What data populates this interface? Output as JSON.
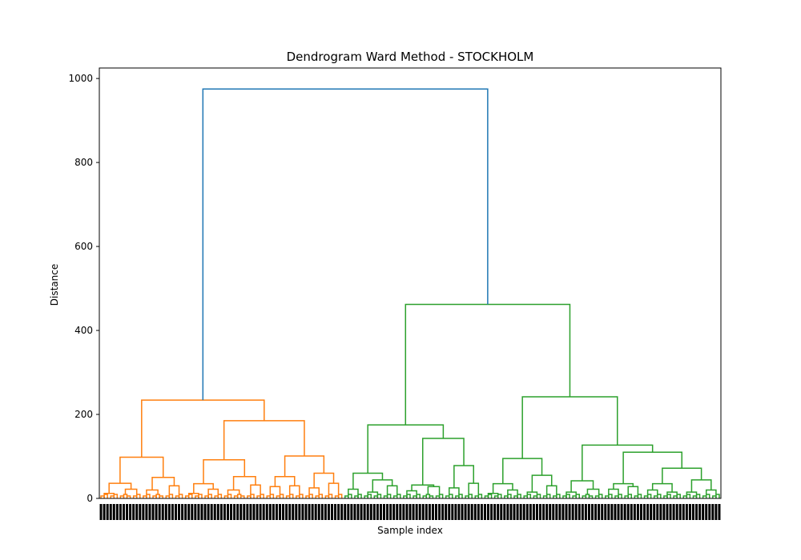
{
  "chart_data": {
    "type": "dendrogram",
    "title": "Dendrogram Ward Method - STOCKHOLM",
    "xlabel": "Sample index",
    "ylabel": "Distance",
    "ylim": [
      0,
      1025
    ],
    "yticks": [
      0,
      200,
      400,
      600,
      800,
      1000
    ],
    "grid": false,
    "colors": {
      "root": "#1f77b4",
      "cluster_1": "#ff7f0e",
      "cluster_2": "#2ca02c",
      "axes": "#000000"
    },
    "merge_heights": {
      "root": 975,
      "cluster_1": 234,
      "cluster_2": 462
    },
    "tree": {
      "h": 975,
      "c": "root",
      "ch": [
        {
          "h": 234,
          "c": "cluster_1",
          "ch": [
            {
              "h": 98,
              "c": "cluster_1",
              "ch": [
                {
                  "h": 36,
                  "c": "cluster_1",
                  "ch": [
                    {
                      "h": 12,
                      "c": "cluster_1",
                      "ch": [
                        {
                          "leaves": 3
                        },
                        {
                          "leaves": 3
                        }
                      ]
                    },
                    {
                      "h": 22,
                      "c": "cluster_1",
                      "ch": [
                        {
                          "leaves": 4
                        },
                        {
                          "leaves": 3
                        }
                      ]
                    }
                  ]
                },
                {
                  "h": 50,
                  "c": "cluster_1",
                  "ch": [
                    {
                      "h": 20,
                      "c": "cluster_1",
                      "ch": [
                        {
                          "leaves": 3
                        },
                        {
                          "leaves": 4
                        }
                      ]
                    },
                    {
                      "h": 30,
                      "c": "cluster_1",
                      "ch": [
                        {
                          "leaves": 3
                        },
                        {
                          "leaves": 3
                        }
                      ]
                    }
                  ]
                }
              ]
            },
            {
              "h": 185,
              "c": "cluster_1",
              "ch": [
                {
                  "h": 92,
                  "c": "cluster_1",
                  "ch": [
                    {
                      "h": 35,
                      "c": "cluster_1",
                      "ch": [
                        {
                          "h": 12,
                          "c": "cluster_1",
                          "ch": [
                            {
                              "leaves": 3
                            },
                            {
                              "leaves": 3
                            }
                          ]
                        },
                        {
                          "h": 22,
                          "c": "cluster_1",
                          "ch": [
                            {
                              "leaves": 3
                            },
                            {
                              "leaves": 3
                            }
                          ]
                        }
                      ]
                    },
                    {
                      "h": 52,
                      "c": "cluster_1",
                      "ch": [
                        {
                          "h": 20,
                          "c": "cluster_1",
                          "ch": [
                            {
                              "leaves": 3
                            },
                            {
                              "leaves": 4
                            }
                          ]
                        },
                        {
                          "h": 32,
                          "c": "cluster_1",
                          "ch": [
                            {
                              "leaves": 3
                            },
                            {
                              "leaves": 3
                            }
                          ]
                        }
                      ]
                    }
                  ]
                },
                {
                  "h": 101,
                  "c": "cluster_1",
                  "ch": [
                    {
                      "h": 52,
                      "c": "cluster_1",
                      "ch": [
                        {
                          "h": 28,
                          "c": "cluster_1",
                          "ch": [
                            {
                              "leaves": 3
                            },
                            {
                              "leaves": 3
                            }
                          ]
                        },
                        {
                          "h": 30,
                          "c": "cluster_1",
                          "ch": [
                            {
                              "leaves": 3
                            },
                            {
                              "leaves": 3
                            }
                          ]
                        }
                      ]
                    },
                    {
                      "h": 60,
                      "c": "cluster_1",
                      "ch": [
                        {
                          "h": 25,
                          "c": "cluster_1",
                          "ch": [
                            {
                              "leaves": 3
                            },
                            {
                              "leaves": 3
                            }
                          ]
                        },
                        {
                          "h": 36,
                          "c": "cluster_1",
                          "ch": [
                            {
                              "leaves": 3
                            },
                            {
                              "leaves": 3
                            }
                          ]
                        }
                      ]
                    }
                  ]
                }
              ]
            }
          ]
        },
        {
          "h": 462,
          "c": "cluster_2",
          "ch": [
            {
              "h": 175,
              "c": "cluster_2",
              "ch": [
                {
                  "h": 60,
                  "c": "cluster_2",
                  "ch": [
                    {
                      "h": 22,
                      "c": "cluster_2",
                      "ch": [
                        {
                          "leaves": 3
                        },
                        {
                          "leaves": 3
                        }
                      ]
                    },
                    {
                      "h": 44,
                      "c": "cluster_2",
                      "ch": [
                        {
                          "h": 15,
                          "c": "cluster_2",
                          "ch": [
                            {
                              "leaves": 3
                            },
                            {
                              "leaves": 3
                            }
                          ]
                        },
                        {
                          "h": 30,
                          "c": "cluster_2",
                          "ch": [
                            {
                              "leaves": 3
                            },
                            {
                              "leaves": 3
                            }
                          ]
                        }
                      ]
                    }
                  ]
                },
                {
                  "h": 143,
                  "c": "cluster_2",
                  "ch": [
                    {
                      "h": 32,
                      "c": "cluster_2",
                      "ch": [
                        {
                          "h": 18,
                          "c": "cluster_2",
                          "ch": [
                            {
                              "leaves": 3
                            },
                            {
                              "leaves": 3
                            }
                          ]
                        },
                        {
                          "h": 28,
                          "c": "cluster_2",
                          "ch": [
                            {
                              "leaves": 4
                            },
                            {
                              "leaves": 3
                            }
                          ]
                        }
                      ]
                    },
                    {
                      "h": 78,
                      "c": "cluster_2",
                      "ch": [
                        {
                          "h": 25,
                          "c": "cluster_2",
                          "ch": [
                            {
                              "leaves": 3
                            },
                            {
                              "leaves": 3
                            }
                          ]
                        },
                        {
                          "h": 36,
                          "c": "cluster_2",
                          "ch": [
                            {
                              "leaves": 3
                            },
                            {
                              "leaves": 3
                            }
                          ]
                        }
                      ]
                    }
                  ]
                }
              ]
            },
            {
              "h": 242,
              "c": "cluster_2",
              "ch": [
                {
                  "h": 95,
                  "c": "cluster_2",
                  "ch": [
                    {
                      "h": 35,
                      "c": "cluster_2",
                      "ch": [
                        {
                          "h": 12,
                          "c": "cluster_2",
                          "ch": [
                            {
                              "leaves": 3
                            },
                            {
                              "leaves": 3
                            }
                          ]
                        },
                        {
                          "h": 20,
                          "c": "cluster_2",
                          "ch": [
                            {
                              "leaves": 3
                            },
                            {
                              "leaves": 3
                            }
                          ]
                        }
                      ]
                    },
                    {
                      "h": 55,
                      "c": "cluster_2",
                      "ch": [
                        {
                          "h": 15,
                          "c": "cluster_2",
                          "ch": [
                            {
                              "leaves": 3
                            },
                            {
                              "leaves": 3
                            }
                          ]
                        },
                        {
                          "h": 30,
                          "c": "cluster_2",
                          "ch": [
                            {
                              "leaves": 3
                            },
                            {
                              "leaves": 3
                            }
                          ]
                        }
                      ]
                    }
                  ]
                },
                {
                  "h": 127,
                  "c": "cluster_2",
                  "ch": [
                    {
                      "h": 42,
                      "c": "cluster_2",
                      "ch": [
                        {
                          "h": 15,
                          "c": "cluster_2",
                          "ch": [
                            {
                              "leaves": 3
                            },
                            {
                              "leaves": 3
                            }
                          ]
                        },
                        {
                          "h": 22,
                          "c": "cluster_2",
                          "ch": [
                            {
                              "leaves": 4
                            },
                            {
                              "leaves": 3
                            }
                          ]
                        }
                      ]
                    },
                    {
                      "h": 110,
                      "c": "cluster_2",
                      "ch": [
                        {
                          "h": 35,
                          "c": "cluster_2",
                          "ch": [
                            {
                              "h": 22,
                              "c": "cluster_2",
                              "ch": [
                                {
                                  "leaves": 3
                                },
                                {
                                  "leaves": 3
                                }
                              ]
                            },
                            {
                              "h": 28,
                              "c": "cluster_2",
                              "ch": [
                                {
                                  "leaves": 3
                                },
                                {
                                  "leaves": 3
                                }
                              ]
                            }
                          ]
                        },
                        {
                          "h": 72,
                          "c": "cluster_2",
                          "ch": [
                            {
                              "h": 35,
                              "c": "cluster_2",
                              "ch": [
                                {
                                  "h": 20,
                                  "c": "cluster_2",
                                  "ch": [
                                    {
                                      "leaves": 3
                                    },
                                    {
                                      "leaves": 3
                                    }
                                  ]
                                },
                                {
                                  "h": 15,
                                  "c": "cluster_2",
                                  "ch": [
                                    {
                                      "leaves": 3
                                    },
                                    {
                                      "leaves": 3
                                    }
                                  ]
                                }
                              ]
                            },
                            {
                              "h": 44,
                              "c": "cluster_2",
                              "ch": [
                                {
                                  "h": 15,
                                  "c": "cluster_2",
                                  "ch": [
                                    {
                                      "leaves": 3
                                    },
                                    {
                                      "leaves": 3
                                    }
                                  ]
                                },
                                {
                                  "h": 20,
                                  "c": "cluster_2",
                                  "ch": [
                                    {
                                      "leaves": 3
                                    },
                                    {
                                      "leaves": 3
                                    }
                                  ]
                                }
                              ]
                            }
                          ]
                        }
                      ]
                    }
                  ]
                }
              ]
            }
          ]
        }
      ]
    }
  }
}
